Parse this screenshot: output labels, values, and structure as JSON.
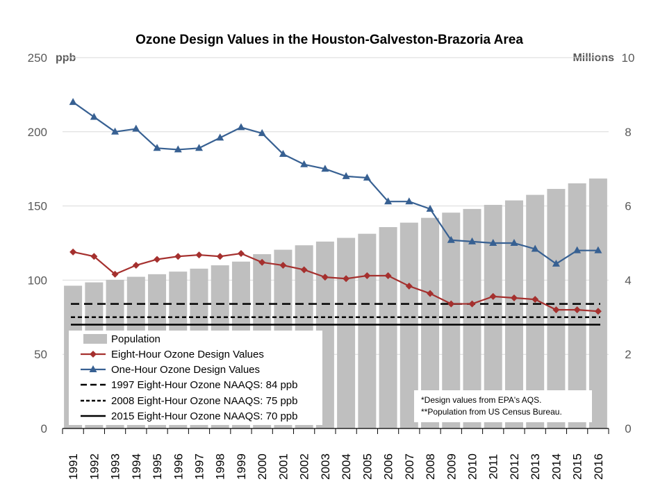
{
  "chart_data": {
    "type": "bar+line",
    "title": "Ozone Design Values in the Houston-Galveston-Brazoria Area",
    "y_left_unit": "ppb",
    "y_right_unit": "Millions",
    "y_left_range": [
      0,
      250
    ],
    "y_left_ticks": [
      "0",
      "50",
      "100",
      "150",
      "200",
      "250"
    ],
    "y_right_range": [
      0,
      10
    ],
    "y_right_ticks": [
      "0",
      "2",
      "4",
      "6",
      "8",
      "10"
    ],
    "categories": [
      "1991",
      "1992",
      "1993",
      "1994",
      "1995",
      "1996",
      "1997",
      "1998",
      "1999",
      "2000",
      "2001",
      "2002",
      "2003",
      "2004",
      "2005",
      "2006",
      "2007",
      "2008",
      "2009",
      "2010",
      "2011",
      "2012",
      "2013",
      "2014",
      "2015",
      "2016"
    ],
    "series": [
      {
        "name": "Population",
        "type": "bar",
        "axis": "right",
        "color": "#bfbfbf",
        "values": [
          3.85,
          3.94,
          4.01,
          4.09,
          4.16,
          4.23,
          4.31,
          4.4,
          4.5,
          4.7,
          4.82,
          4.94,
          5.04,
          5.14,
          5.25,
          5.43,
          5.55,
          5.68,
          5.82,
          5.92,
          6.03,
          6.15,
          6.3,
          6.46,
          6.61,
          6.74
        ]
      },
      {
        "name": "Eight-Hour Ozone Design Values",
        "type": "line",
        "axis": "left",
        "marker": "diamond",
        "color": "#a5302e",
        "values": [
          119,
          116,
          104,
          110,
          114,
          116,
          117,
          116,
          118,
          112,
          110,
          107,
          102,
          101,
          103,
          103,
          96,
          91,
          84,
          84,
          89,
          88,
          87,
          80,
          80,
          79
        ]
      },
      {
        "name": "One-Hour Ozone Design Values",
        "type": "line",
        "axis": "left",
        "marker": "triangle",
        "color": "#376092",
        "values": [
          220,
          210,
          200,
          202,
          189,
          188,
          189,
          196,
          203,
          199,
          185,
          178,
          175,
          170,
          169,
          153,
          153,
          148,
          127,
          126,
          125,
          125,
          121,
          111,
          120,
          120
        ]
      }
    ],
    "reference_lines": [
      {
        "name": "1997 Eight-Hour Ozone NAAQS: 84 ppb",
        "value": 84,
        "style": "long-dash"
      },
      {
        "name": "2008 Eight-Hour Ozone NAAQS: 75 ppb",
        "value": 75,
        "style": "short-dash"
      },
      {
        "name": "2015 Eight-Hour Ozone NAAQS: 70 ppb",
        "value": 70,
        "style": "solid"
      }
    ],
    "legend": [
      "Population",
      "Eight-Hour Ozone Design Values",
      "One-Hour Ozone Design Values",
      "1997 Eight-Hour Ozone NAAQS: 84 ppb",
      "2008 Eight-Hour Ozone NAAQS: 75 ppb",
      "2015 Eight-Hour Ozone NAAQS: 70 ppb"
    ],
    "notes": [
      "*Design values from EPA's AQS.",
      "**Population from US Census Bureau."
    ]
  }
}
